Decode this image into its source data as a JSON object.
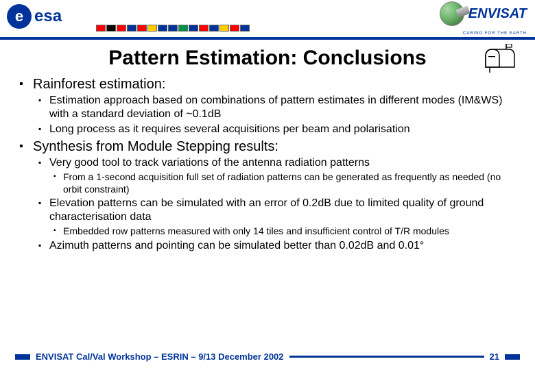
{
  "header": {
    "esa_text": "esa",
    "envisat_text": "ENVISAT",
    "envisat_tagline": "CARING FOR THE EARTH",
    "flag_colors": [
      "#ff0000",
      "#000000",
      "#ff0000",
      "#003399",
      "#ff0000",
      "#ffcc00",
      "#003399",
      "#003399",
      "#009246",
      "#003399",
      "#ff0000",
      "#003399",
      "#ffcc00",
      "#ff0000",
      "#003399"
    ]
  },
  "title": "Pattern Estimation: Conclusions",
  "sections": {
    "s1": {
      "heading": "Rainforest estimation:",
      "b1": "Estimation approach based on combinations of pattern estimates in different modes (IM&WS) with a standard deviation of ~0.1dB",
      "b2": "Long process as it requires several acquisitions per beam and polarisation"
    },
    "s2": {
      "heading": "Synthesis from Module Stepping results:",
      "b1": "Very good tool to track variations of the antenna radiation patterns",
      "b1_1": "From a 1-second acquisition full set of radiation patterns can be generated as frequently as needed (no orbit constraint)",
      "b2": "Elevation patterns can be simulated with an error of 0.2dB due to limited quality of ground characterisation data",
      "b2_1": "Embedded row patterns measured with only 14 tiles and insufficient control of T/R modules",
      "b3": "Azimuth patterns and pointing can be simulated better than 0.02dB and 0.01°"
    }
  },
  "footer": {
    "text": "ENVISAT Cal/Val Workshop – ESRIN – 9/13 December 2002",
    "page": "21"
  },
  "colors": {
    "brand_blue": "#003399",
    "background": "#ffffff"
  }
}
